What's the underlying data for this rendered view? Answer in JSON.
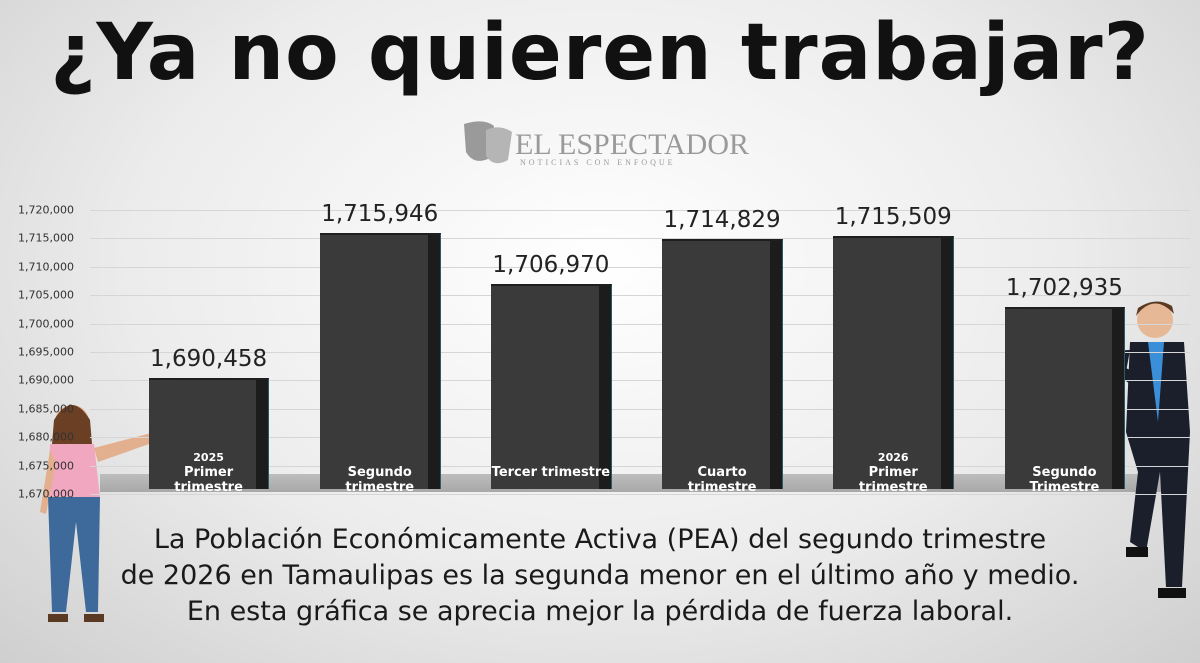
{
  "chart_data": {
    "type": "bar",
    "title": "¿Ya no quieren trabajar?",
    "brand": {
      "name": "EL ESPECTADOR",
      "tagline": "NOTICIAS CON ENFOQUE"
    },
    "categories": [
      "Primer trimestre",
      "Segundo trimestre",
      "Tercer trimestre",
      "Cuarto trimestre",
      "Primer trimestre",
      "Segundo Trimestre"
    ],
    "category_years": [
      "2025",
      null,
      null,
      null,
      "2026",
      null
    ],
    "values": [
      1690458,
      1715946,
      1706970,
      1714829,
      1715509,
      1702935
    ],
    "value_labels": [
      "1,690,458",
      "1,715,946",
      "1,706,970",
      "1,714,829",
      "1,715,509",
      "1,702,935"
    ],
    "color": "#3a3a3a",
    "ylim": [
      1670000,
      1720000
    ],
    "yticks": [
      {
        "value": 1670000,
        "label": "1,670,000"
      },
      {
        "value": 1675000,
        "label": "1,675,000"
      },
      {
        "value": 1680000,
        "label": "1,680,000"
      },
      {
        "value": 1685000,
        "label": "1,685,000"
      },
      {
        "value": 1690000,
        "label": "1,690,000"
      },
      {
        "value": 1695000,
        "label": "1,695,000"
      },
      {
        "value": 1700000,
        "label": "1,700,000"
      },
      {
        "value": 1705000,
        "label": "1,705,000"
      },
      {
        "value": 1710000,
        "label": "1,710,000"
      },
      {
        "value": 1715000,
        "label": "1,715,000"
      },
      {
        "value": 1720000,
        "label": "1,720,000"
      }
    ],
    "grid": true,
    "caption": [
      "La Población Económicamente Activa (PEA) del segundo trimestre",
      "de 2026 en Tamaulipas es la segunda menor en el último año y medio.",
      "En esta gráfica se aprecia mejor la pérdida de fuerza laboral."
    ]
  }
}
